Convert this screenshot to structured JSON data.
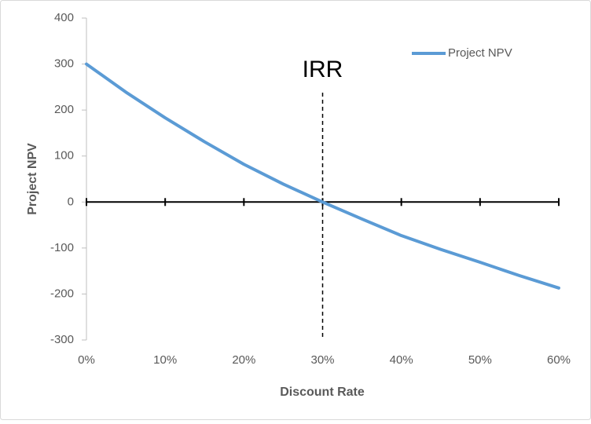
{
  "chart_data": {
    "type": "line",
    "x_label": "Discount Rate",
    "y_label": "Project NPV",
    "x": [
      0,
      5,
      10,
      15,
      20,
      25,
      30,
      35,
      40,
      45,
      50,
      55,
      60
    ],
    "series": [
      {
        "name": "Project NPV",
        "color": "#5b9bd5",
        "values": [
          300,
          239,
          183,
          131,
          82,
          39,
          0,
          -37,
          -73,
          -103,
          -131,
          -160,
          -187
        ]
      }
    ],
    "xlim": [
      0,
      60
    ],
    "xticks": [
      {
        "value": 0,
        "label": "0%"
      },
      {
        "value": 10,
        "label": "10%"
      },
      {
        "value": 20,
        "label": "20%"
      },
      {
        "value": 30,
        "label": "30%"
      },
      {
        "value": 40,
        "label": "40%"
      },
      {
        "value": 50,
        "label": "50%"
      },
      {
        "value": 60,
        "label": "60%"
      }
    ],
    "ylim": [
      -300,
      400
    ],
    "yticks": [
      -300,
      -200,
      -100,
      0,
      100,
      200,
      300,
      400
    ],
    "annotation": {
      "text": "IRR",
      "x": 30
    },
    "legend": "top-right",
    "grid": false
  }
}
